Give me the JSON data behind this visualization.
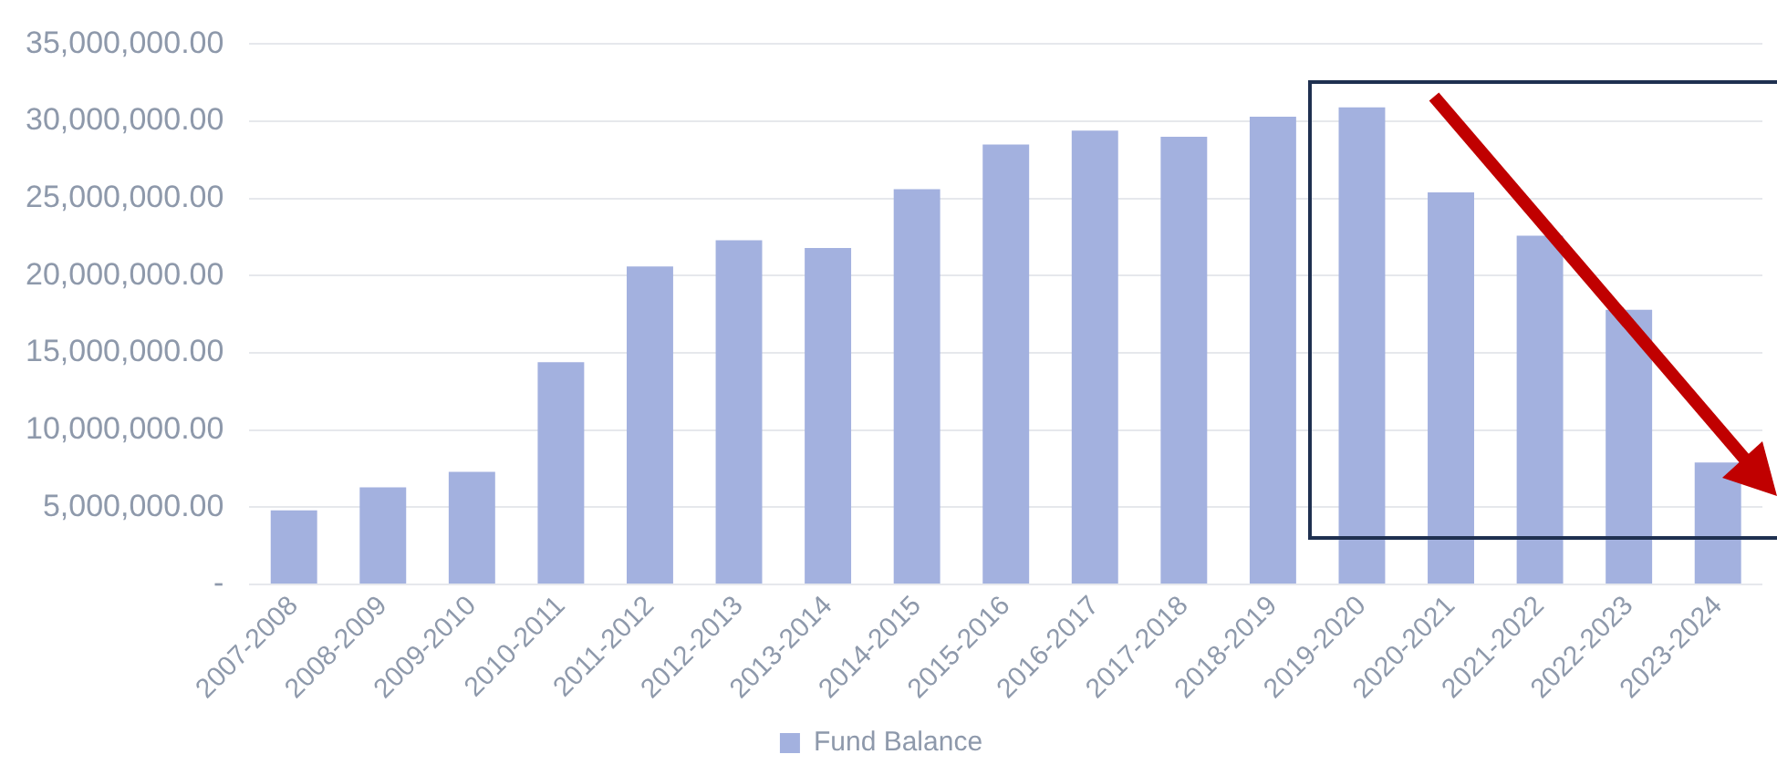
{
  "chart_data": {
    "type": "bar",
    "categories": [
      "2007-2008",
      "2008-2009",
      "2009-2010",
      "2010-2011",
      "2011-2012",
      "2012-2013",
      "2013-2014",
      "2014-2015",
      "2015-2016",
      "2016-2017",
      "2017-2018",
      "2018-2019",
      "2019-2020",
      "2020-2021",
      "2021-2022",
      "2022-2023",
      "2023-2024"
    ],
    "series": [
      {
        "name": "Fund Balance",
        "color": "#a3b1df",
        "values": [
          4800000,
          6300000,
          7300000,
          14400000,
          20600000,
          22300000,
          21800000,
          25600000,
          28500000,
          29400000,
          29000000,
          30300000,
          30900000,
          25400000,
          22600000,
          17800000,
          7900000
        ]
      }
    ],
    "ylim": [
      0,
      35000000
    ],
    "yticks": [
      {
        "value": 0,
        "label": "-"
      },
      {
        "value": 5000000,
        "label": "5,000,000.00"
      },
      {
        "value": 10000000,
        "label": "10,000,000.00"
      },
      {
        "value": 15000000,
        "label": "15,000,000.00"
      },
      {
        "value": 20000000,
        "label": "20,000,000.00"
      },
      {
        "value": 25000000,
        "label": "25,000,000.00"
      },
      {
        "value": 30000000,
        "label": "30,000,000.00"
      },
      {
        "value": 35000000,
        "label": "35,000,000.00"
      }
    ],
    "grid": "y",
    "legend": "bottom"
  }
}
